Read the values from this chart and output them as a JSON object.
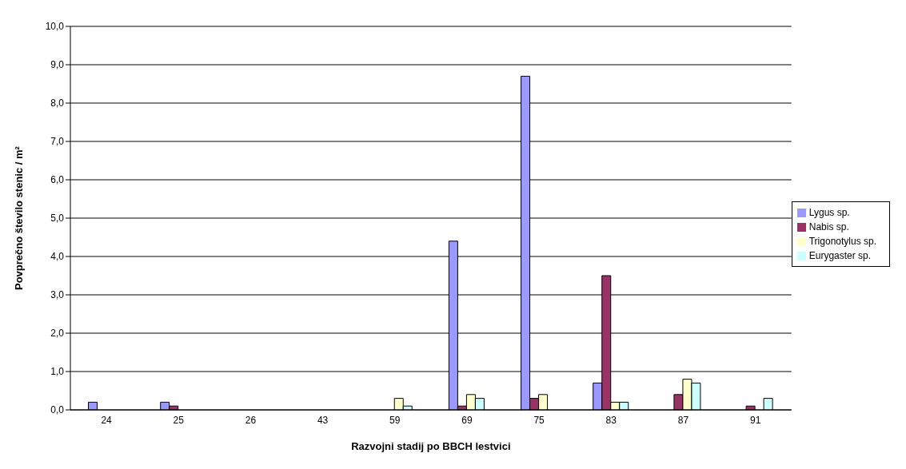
{
  "chart_data": {
    "type": "bar",
    "xlabel": "Razvojni stadij po BBCH lestvici",
    "ylabel": "Povprečno število stenic / m²",
    "categories": [
      "24",
      "25",
      "26",
      "43",
      "59",
      "69",
      "75",
      "83",
      "87",
      "91"
    ],
    "series": [
      {
        "name": "Lygus sp.",
        "color": "#9999ff",
        "values": [
          0.2,
          0.2,
          0,
          0,
          0,
          4.4,
          8.7,
          0.7,
          0,
          0
        ]
      },
      {
        "name": "Nabis sp.",
        "color": "#993366",
        "values": [
          0,
          0.1,
          0,
          0,
          0,
          0.1,
          0.3,
          3.5,
          0.4,
          0.1
        ]
      },
      {
        "name": "Trigonotylus sp.",
        "color": "#ffffcc",
        "values": [
          0,
          0,
          0,
          0,
          0.3,
          0.4,
          0.4,
          0.2,
          0.8,
          0
        ]
      },
      {
        "name": "Eurygaster sp.",
        "color": "#ccffff",
        "values": [
          0,
          0,
          0,
          0,
          0.1,
          0.3,
          0,
          0.2,
          0.7,
          0.3
        ]
      }
    ],
    "ylim": [
      0,
      10
    ],
    "yticks": [
      {
        "value": 0,
        "label": "0,0"
      },
      {
        "value": 1,
        "label": "1,0"
      },
      {
        "value": 2,
        "label": "2,0"
      },
      {
        "value": 3,
        "label": "3,0"
      },
      {
        "value": 4,
        "label": "4,0"
      },
      {
        "value": 5,
        "label": "5,0"
      },
      {
        "value": 6,
        "label": "6,0"
      },
      {
        "value": 7,
        "label": "7,0"
      },
      {
        "value": 8,
        "label": "8,0"
      },
      {
        "value": 9,
        "label": "9,0"
      },
      {
        "value": 10,
        "label": "10,0"
      }
    ],
    "grid": "y",
    "legend": "right"
  }
}
